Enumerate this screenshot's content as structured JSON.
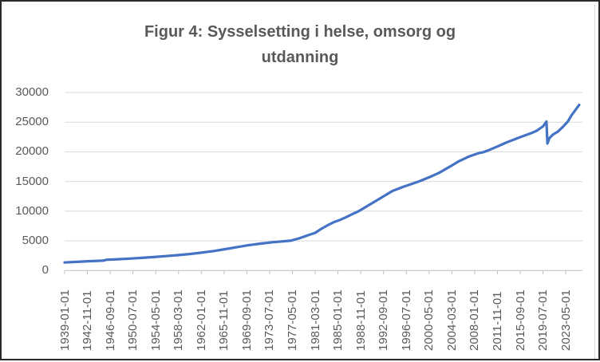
{
  "chart_data": {
    "type": "line",
    "title": "Figur 4: Sysselsetting i helse, omsorg og utdanning",
    "xlabel": "",
    "ylabel": "",
    "ylim": [
      0,
      30000
    ],
    "y_tick_step": 5000,
    "y_ticks": [
      0,
      5000,
      10000,
      15000,
      20000,
      25000,
      30000
    ],
    "x_start_month": "1939-01",
    "x_tick_interval_months": 46,
    "x_tick_labels": [
      "1939-01-01",
      "1942-11-01",
      "1946-09-01",
      "1950-07-01",
      "1954-05-01",
      "1958-03-01",
      "1962-01-01",
      "1965-11-01",
      "1969-09-01",
      "1973-07-01",
      "1977-05-01",
      "1981-03-01",
      "1985-01-01",
      "1988-11-01",
      "1992-09-01",
      "1996-07-01",
      "2000-05-01",
      "2004-03-01",
      "2008-01-01",
      "2011-11-01",
      "2015-09-01",
      "2019-07-01",
      "2023-05-01"
    ],
    "grid": true,
    "legend": "none",
    "series_name": "Sysselsetting i helse, omsorg og utdanning",
    "series_color": "#4472C4",
    "gridline_color": "#d9d9d9",
    "axis_color": "#bfbfbf",
    "label_color": "#595959",
    "points": [
      {
        "date": "1939-01",
        "value": 1350
      },
      {
        "date": "1941-01",
        "value": 1450
      },
      {
        "date": "1943-01",
        "value": 1560
      },
      {
        "date": "1945-01",
        "value": 1640
      },
      {
        "date": "1945-06",
        "value": 1650
      },
      {
        "date": "1945-10",
        "value": 1720
      },
      {
        "date": "1946-01",
        "value": 1800
      },
      {
        "date": "1948-01",
        "value": 1900
      },
      {
        "date": "1950-01",
        "value": 2000
      },
      {
        "date": "1952-01",
        "value": 2120
      },
      {
        "date": "1954-01",
        "value": 2260
      },
      {
        "date": "1956-01",
        "value": 2420
      },
      {
        "date": "1958-01",
        "value": 2580
      },
      {
        "date": "1960-01",
        "value": 2770
      },
      {
        "date": "1962-01",
        "value": 3000
      },
      {
        "date": "1964-01",
        "value": 3270
      },
      {
        "date": "1966-01",
        "value": 3590
      },
      {
        "date": "1968-01",
        "value": 3940
      },
      {
        "date": "1970-01",
        "value": 4270
      },
      {
        "date": "1972-01",
        "value": 4530
      },
      {
        "date": "1974-01",
        "value": 4760
      },
      {
        "date": "1976-01",
        "value": 4930
      },
      {
        "date": "1977-01",
        "value": 5010
      },
      {
        "date": "1978-06",
        "value": 5400
      },
      {
        "date": "1980-01",
        "value": 5950
      },
      {
        "date": "1981-03",
        "value": 6350
      },
      {
        "date": "1982-03",
        "value": 7000
      },
      {
        "date": "1983-06",
        "value": 7700
      },
      {
        "date": "1984-06",
        "value": 8200
      },
      {
        "date": "1985-06",
        "value": 8550
      },
      {
        "date": "1986-06",
        "value": 9000
      },
      {
        "date": "1987-06",
        "value": 9500
      },
      {
        "date": "1988-07",
        "value": 10000
      },
      {
        "date": "1990-01",
        "value": 10900
      },
      {
        "date": "1992-01",
        "value": 12100
      },
      {
        "date": "1994-03",
        "value": 13400
      },
      {
        "date": "1996-01",
        "value": 14100
      },
      {
        "date": "1998-08",
        "value": 15000
      },
      {
        "date": "2000-05",
        "value": 15700
      },
      {
        "date": "2002-01",
        "value": 16450
      },
      {
        "date": "2004-03",
        "value": 17700
      },
      {
        "date": "2005-05",
        "value": 18400
      },
      {
        "date": "2007-01",
        "value": 19200
      },
      {
        "date": "2008-10",
        "value": 19800
      },
      {
        "date": "2009-07",
        "value": 19950
      },
      {
        "date": "2010-06",
        "value": 20300
      },
      {
        "date": "2011-11",
        "value": 20900
      },
      {
        "date": "2013-06",
        "value": 21600
      },
      {
        "date": "2015-09",
        "value": 22470
      },
      {
        "date": "2017-06",
        "value": 23100
      },
      {
        "date": "2018-05",
        "value": 23500
      },
      {
        "date": "2019-07",
        "value": 24300
      },
      {
        "date": "2020-02",
        "value": 25100
      },
      {
        "date": "2020-04",
        "value": 21400
      },
      {
        "date": "2020-08",
        "value": 22300
      },
      {
        "date": "2021-03",
        "value": 22900
      },
      {
        "date": "2022-01",
        "value": 23400
      },
      {
        "date": "2022-11",
        "value": 24200
      },
      {
        "date": "2023-09",
        "value": 25100
      },
      {
        "date": "2024-05",
        "value": 26200
      },
      {
        "date": "2025-01",
        "value": 27100
      },
      {
        "date": "2025-08",
        "value": 27900
      }
    ]
  }
}
